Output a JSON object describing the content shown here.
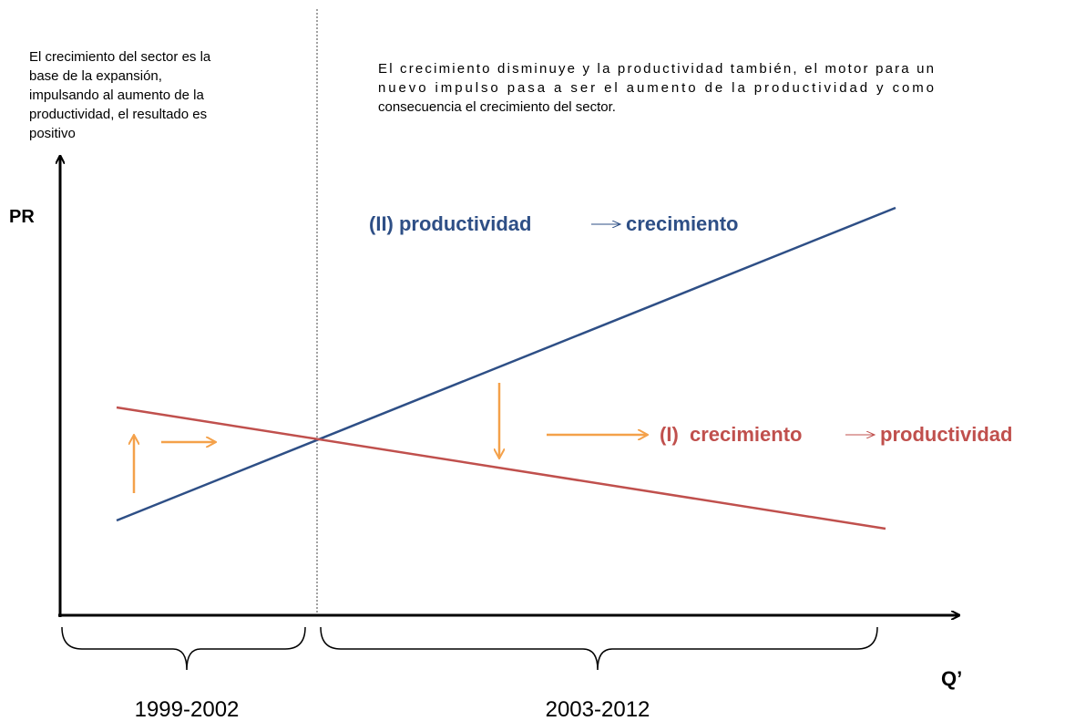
{
  "left_note": {
    "lines": [
      "El crecimiento del sector es la",
      "base de la expansión,",
      "impulsando al aumento de la",
      "productividad, el resultado es",
      "positivo"
    ]
  },
  "right_note": {
    "lines": [
      "El crecimiento disminuye y la productividad también, el motor para un",
      "nuevo impulso pasa a ser el aumento de la productividad y como",
      "consecuencia el crecimiento del sector."
    ]
  },
  "y_axis_label": "PR",
  "x_axis_label": "Q’",
  "line_ii": {
    "from": "(II) productividad",
    "to": "crecimiento"
  },
  "line_i": {
    "from": "(I)  crecimiento",
    "to": "productividad"
  },
  "periods": [
    "1999-2002",
    "2003-2012"
  ]
}
